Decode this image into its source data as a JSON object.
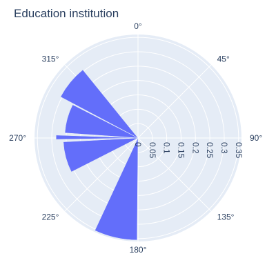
{
  "chart_data": {
    "type": "barpolar",
    "title": "Education institution",
    "angular_axis": {
      "direction": "clockwise",
      "rotation": 90,
      "tick_labels": [
        "0°",
        "45°",
        "90°",
        "135°",
        "180°",
        "225°",
        "270°",
        "315°"
      ],
      "tick_values": [
        0,
        45,
        90,
        135,
        180,
        225,
        270,
        315
      ]
    },
    "radial_axis": {
      "range": [
        0,
        0.36
      ],
      "angle_deg": 90,
      "tick_values": [
        0,
        0.05,
        0.1,
        0.15,
        0.2,
        0.25,
        0.3,
        0.35
      ],
      "tick_labels": [
        "0",
        "0.05",
        "0.1",
        "0.15",
        "0.2",
        "0.25",
        "0.3",
        "0.35"
      ]
    },
    "grid": true,
    "series": [
      {
        "color": "#636efa",
        "bars": [
          {
            "theta_start": 180.5,
            "theta_end": 205,
            "r": 0.355
          },
          {
            "theta_start": 243,
            "theta_end": 267,
            "r": 0.26
          },
          {
            "theta_start": 269,
            "theta_end": 272,
            "r": 0.285
          },
          {
            "theta_start": 274,
            "theta_end": 297,
            "r": 0.255
          },
          {
            "theta_start": 298,
            "theta_end": 321,
            "r": 0.305
          }
        ]
      }
    ],
    "colors": {
      "plot_bg": "#e5ecf6",
      "grid": "#ffffff",
      "text": "#2a3f5f"
    }
  }
}
